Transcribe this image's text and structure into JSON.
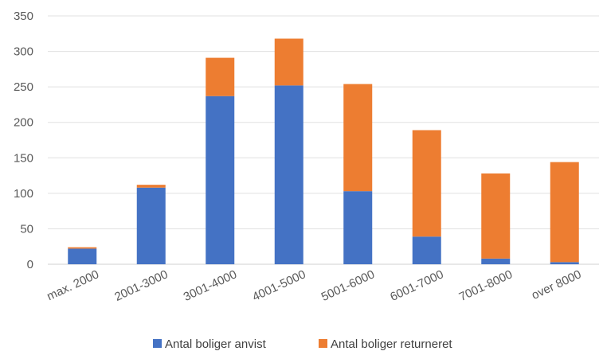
{
  "chart_data": {
    "type": "bar",
    "stacked": true,
    "categories": [
      "max. 2000",
      "2001-3000",
      "3001-4000",
      "4001-5000",
      "5001-6000",
      "6001-7000",
      "7001-8000",
      "over 8000"
    ],
    "series": [
      {
        "name": "Antal boliger anvist",
        "color": "#4472C4",
        "values": [
          22,
          108,
          237,
          252,
          103,
          39,
          8,
          3
        ]
      },
      {
        "name": "Antal boliger returneret",
        "color": "#ED7D31",
        "values": [
          2,
          4,
          54,
          66,
          151,
          150,
          120,
          141
        ]
      }
    ],
    "ylim": [
      0,
      350
    ],
    "yticks": [
      0,
      50,
      100,
      150,
      200,
      250,
      300,
      350
    ],
    "grid": true,
    "legend": "bottom",
    "xtick_rotation": -25,
    "title": "",
    "xlabel": "",
    "ylabel": ""
  }
}
